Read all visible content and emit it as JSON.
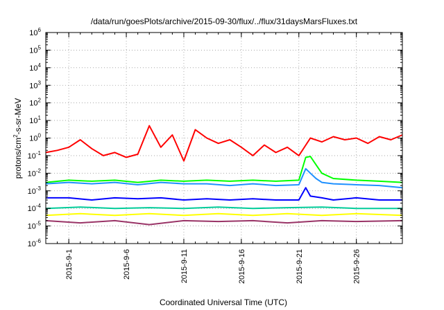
{
  "chart_data": {
    "type": "line",
    "title": "/data/run/goesPlots/archive/2015-09-30/flux/../flux/31daysMarsFluxes.txt",
    "xlabel": "Coordinated Universal Time (UTC)",
    "ylabel": "protons/cm2-s-sr-MeV",
    "ylabel_parts": [
      "protons/cm",
      "2",
      "-s-sr-MeV"
    ],
    "y_scale": "log",
    "y_range_exponents": [
      -6,
      6
    ],
    "y_tick_base": "10",
    "y_tick_exponents": [
      -6,
      -5,
      -4,
      -3,
      -2,
      -1,
      0,
      1,
      2,
      3,
      4,
      5,
      6
    ],
    "x_range": [
      "2015-08-30",
      "2015-09-30"
    ],
    "x_tick_labels": [
      "2015-9-1",
      "2015-9-6",
      "2015-9-11",
      "2015-9-16",
      "2015-9-21",
      "2015-9-26"
    ],
    "x_tick_dates": [
      "2015-09-01",
      "2015-09-06",
      "2015-09-11",
      "2015-09-16",
      "2015-09-21",
      "2015-09-26"
    ],
    "grid": true,
    "legend": "none",
    "series": [
      {
        "color": "#ff0000",
        "x": [
          "2015-08-30",
          "2015-08-31",
          "2015-09-01",
          "2015-09-02",
          "2015-09-03",
          "2015-09-04",
          "2015-09-05",
          "2015-09-06",
          "2015-09-07",
          "2015-09-08",
          "2015-09-09",
          "2015-09-10",
          "2015-09-11",
          "2015-09-12",
          "2015-09-13",
          "2015-09-14",
          "2015-09-15",
          "2015-09-16",
          "2015-09-17",
          "2015-09-18",
          "2015-09-19",
          "2015-09-20",
          "2015-09-21",
          "2015-09-22",
          "2015-09-23",
          "2015-09-24",
          "2015-09-25",
          "2015-09-26",
          "2015-09-27",
          "2015-09-28",
          "2015-09-29",
          "2015-09-30"
        ],
        "values": [
          0.15,
          0.2,
          0.3,
          0.8,
          0.25,
          0.1,
          0.15,
          0.08,
          0.12,
          5.0,
          0.3,
          1.5,
          0.05,
          3.0,
          1.0,
          0.5,
          0.8,
          0.3,
          0.1,
          0.4,
          0.15,
          0.3,
          0.1,
          1.0,
          0.6,
          1.2,
          0.8,
          1.0,
          0.5,
          1.2,
          0.8,
          1.5
        ]
      },
      {
        "color": "#00ff00",
        "x": [
          "2015-08-30",
          "2015-09-01",
          "2015-09-03",
          "2015-09-05",
          "2015-09-07",
          "2015-09-09",
          "2015-09-11",
          "2015-09-13",
          "2015-09-15",
          "2015-09-17",
          "2015-09-19",
          "2015-09-21",
          "2015-09-21.6",
          "2015-09-22",
          "2015-09-22.5",
          "2015-09-23",
          "2015-09-24",
          "2015-09-26",
          "2015-09-28",
          "2015-09-30"
        ],
        "values": [
          0.003,
          0.004,
          0.0035,
          0.004,
          0.003,
          0.004,
          0.0035,
          0.004,
          0.0035,
          0.004,
          0.0035,
          0.004,
          0.08,
          0.09,
          0.03,
          0.01,
          0.005,
          0.004,
          0.0035,
          0.003
        ]
      },
      {
        "color": "#1e90ff",
        "x": [
          "2015-08-30",
          "2015-09-01",
          "2015-09-03",
          "2015-09-05",
          "2015-09-07",
          "2015-09-09",
          "2015-09-11",
          "2015-09-13",
          "2015-09-15",
          "2015-09-17",
          "2015-09-19",
          "2015-09-21",
          "2015-09-21.6",
          "2015-09-22",
          "2015-09-22.5",
          "2015-09-23",
          "2015-09-24",
          "2015-09-26",
          "2015-09-28",
          "2015-09-30"
        ],
        "values": [
          0.0025,
          0.003,
          0.0025,
          0.003,
          0.0022,
          0.003,
          0.0025,
          0.0025,
          0.002,
          0.0025,
          0.002,
          0.0022,
          0.018,
          0.01,
          0.005,
          0.003,
          0.0025,
          0.0022,
          0.002,
          0.0015
        ]
      },
      {
        "color": "#0000ff",
        "x": [
          "2015-08-30",
          "2015-09-01",
          "2015-09-03",
          "2015-09-05",
          "2015-09-07",
          "2015-09-09",
          "2015-09-11",
          "2015-09-13",
          "2015-09-15",
          "2015-09-17",
          "2015-09-19",
          "2015-09-21",
          "2015-09-21.6",
          "2015-09-22",
          "2015-09-23",
          "2015-09-24",
          "2015-09-26",
          "2015-09-28",
          "2015-09-30"
        ],
        "values": [
          0.0004,
          0.0004,
          0.0003,
          0.0004,
          0.00035,
          0.0004,
          0.0003,
          0.00035,
          0.0003,
          0.00035,
          0.0003,
          0.0003,
          0.0015,
          0.0005,
          0.0004,
          0.0003,
          0.0004,
          0.0003,
          0.0003
        ]
      },
      {
        "color": "#00cc99",
        "x": [
          "2015-08-30",
          "2015-09-02",
          "2015-09-05",
          "2015-09-08",
          "2015-09-11",
          "2015-09-14",
          "2015-09-17",
          "2015-09-20",
          "2015-09-23",
          "2015-09-26",
          "2015-09-30"
        ],
        "values": [
          0.0001,
          0.00012,
          0.0001,
          0.00011,
          0.0001,
          0.00012,
          0.0001,
          0.00011,
          0.00012,
          0.0001,
          0.0001
        ]
      },
      {
        "color": "#ffff00",
        "x": [
          "2015-08-30",
          "2015-09-02",
          "2015-09-05",
          "2015-09-08",
          "2015-09-11",
          "2015-09-14",
          "2015-09-17",
          "2015-09-20",
          "2015-09-23",
          "2015-09-26",
          "2015-09-30"
        ],
        "values": [
          4e-05,
          5e-05,
          4e-05,
          5e-05,
          4e-05,
          5e-05,
          4e-05,
          5e-05,
          4e-05,
          5e-05,
          4e-05
        ]
      },
      {
        "color": "#993366",
        "x": [
          "2015-08-30",
          "2015-09-02",
          "2015-09-05",
          "2015-09-08",
          "2015-09-11",
          "2015-09-14",
          "2015-09-17",
          "2015-09-20",
          "2015-09-23",
          "2015-09-26",
          "2015-09-30"
        ],
        "values": [
          2e-05,
          1.5e-05,
          2e-05,
          1.2e-05,
          2e-05,
          1.8e-05,
          2e-05,
          1.5e-05,
          2e-05,
          1.8e-05,
          2e-05
        ]
      }
    ]
  }
}
